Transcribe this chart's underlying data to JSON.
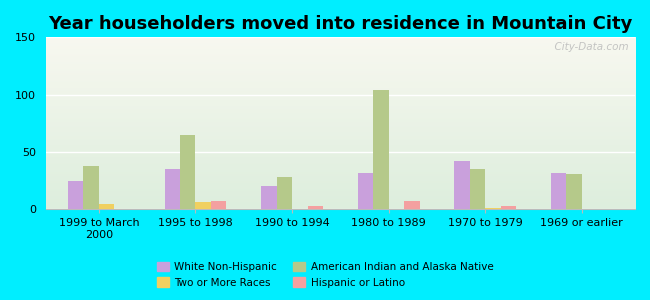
{
  "title": "Year householders moved into residence in Mountain City",
  "categories": [
    "1999 to March\n2000",
    "1995 to 1998",
    "1990 to 1994",
    "1980 to 1989",
    "1970 to 1979",
    "1969 or earlier"
  ],
  "series_order": [
    "White Non-Hispanic",
    "American Indian and Alaska Native",
    "Two or More Races",
    "Hispanic or Latino"
  ],
  "series": {
    "White Non-Hispanic": [
      25,
      35,
      20,
      32,
      42,
      32
    ],
    "American Indian and Alaska Native": [
      38,
      65,
      28,
      104,
      35,
      31
    ],
    "Two or More Races": [
      5,
      6,
      0,
      0,
      1,
      0
    ],
    "Hispanic or Latino": [
      0,
      7,
      3,
      7,
      3,
      0
    ]
  },
  "colors": {
    "White Non-Hispanic": "#c9a0dc",
    "American Indian and Alaska Native": "#b5c98a",
    "Two or More Races": "#f0d060",
    "Hispanic or Latino": "#f4a0a0"
  },
  "legend_order": [
    "White Non-Hispanic",
    "American Indian and Alaska Native",
    "Two or More Races",
    "Hispanic or Latino"
  ],
  "ylim": [
    0,
    150
  ],
  "yticks": [
    0,
    50,
    100,
    150
  ],
  "background_outer": "#00eeff",
  "bar_width": 0.16,
  "title_fontsize": 13,
  "legend_fontsize": 7.5,
  "tick_fontsize": 8,
  "watermark": "  City-Data.com"
}
